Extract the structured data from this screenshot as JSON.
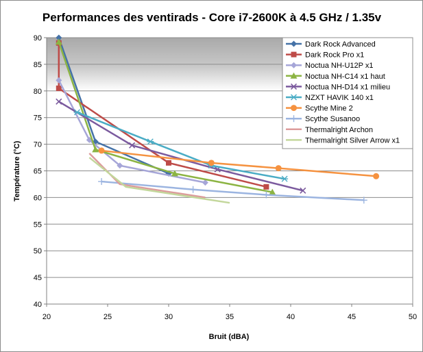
{
  "chart_data": {
    "type": "line",
    "title": "Performances des ventirads - Core i7-2600K à 4.5 GHz / 1.35v",
    "xlabel": "Bruit (dBA)",
    "ylabel": "Température (°C)",
    "xlim": [
      20,
      50
    ],
    "ylim": [
      40,
      90
    ],
    "xticks": [
      20,
      25,
      30,
      35,
      40,
      45,
      50
    ],
    "yticks": [
      40,
      45,
      50,
      55,
      60,
      65,
      70,
      75,
      80,
      85,
      90
    ],
    "grid": "horizontal",
    "legend_position": "top-right",
    "shaded_band": {
      "y_from": 80,
      "y_to": 90,
      "color": "#a9a9a9"
    },
    "series": [
      {
        "name": "Dark Rock Advanced",
        "color": "#4572a7",
        "marker": "diamond",
        "points": [
          [
            21,
            90
          ],
          [
            24,
            70.5
          ],
          [
            30,
            64.5
          ]
        ]
      },
      {
        "name": "Dark Rock Pro x1",
        "color": "#be4b48",
        "marker": "square",
        "points": [
          [
            21,
            89
          ],
          [
            21,
            80.5
          ],
          [
            30,
            66.5
          ],
          [
            38,
            62
          ]
        ]
      },
      {
        "name": "Noctua NH-U12P x1",
        "color": "#a6a6d8",
        "marker": "diamond",
        "points": [
          [
            21,
            82
          ],
          [
            23.5,
            70.8
          ],
          [
            26,
            66
          ],
          [
            33,
            62.8
          ]
        ]
      },
      {
        "name": "Noctua NH-C14 x1 haut",
        "color": "#8cb443",
        "marker": "triangle",
        "points": [
          [
            21,
            89.2
          ],
          [
            24,
            69
          ],
          [
            30.5,
            64.5
          ],
          [
            38.5,
            61
          ]
        ]
      },
      {
        "name": "Noctua NH-D14 x1 milieu",
        "color": "#7b5a9e",
        "marker": "x",
        "points": [
          [
            21,
            78
          ],
          [
            27,
            69.8
          ],
          [
            34,
            65.3
          ],
          [
            41,
            61.3
          ]
        ]
      },
      {
        "name": "NZXT HAVIK 140 x1",
        "color": "#4aacc5",
        "marker": "star",
        "points": [
          [
            22.5,
            76
          ],
          [
            28.5,
            70.5
          ],
          [
            33.5,
            66
          ],
          [
            39.5,
            63.5
          ]
        ]
      },
      {
        "name": "Scythe Mine 2",
        "color": "#f59240",
        "marker": "circle",
        "points": [
          [
            24.5,
            68.8
          ],
          [
            33.5,
            66.5
          ],
          [
            39,
            65.5
          ],
          [
            47,
            64
          ]
        ]
      },
      {
        "name": "Scythe Susanoo",
        "color": "#9bb4e0",
        "marker": "plus",
        "points": [
          [
            24.5,
            63
          ],
          [
            32,
            61.5
          ],
          [
            38,
            60.5
          ],
          [
            46,
            59.5
          ]
        ]
      },
      {
        "name": "Thermalright Archon",
        "color": "#dc9c9c",
        "marker": "none",
        "points": [
          [
            23.5,
            68.3
          ],
          [
            26,
            62.5
          ],
          [
            33,
            60
          ]
        ]
      },
      {
        "name": "Thermalright Silver Arrow x1",
        "color": "#c3d79b",
        "marker": "none",
        "points": [
          [
            23.5,
            67.5
          ],
          [
            26.5,
            62
          ],
          [
            35,
            59
          ]
        ]
      }
    ]
  }
}
